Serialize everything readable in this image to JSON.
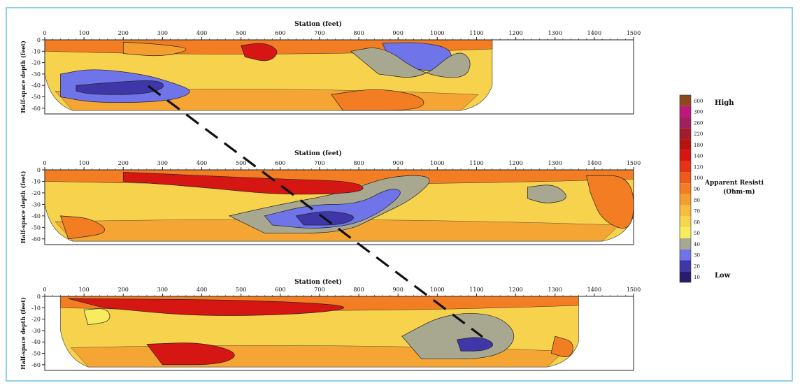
{
  "chart_data": {
    "type": "heatmap",
    "panels": [
      {
        "title": "Station (feet)",
        "ylabel": "Half-space depth (feet)",
        "xlim": [
          0,
          1500
        ],
        "ylim": [
          -65,
          0
        ],
        "x_ticks": [
          "0",
          "100",
          "200",
          "300",
          "400",
          "500",
          "600",
          "700",
          "800",
          "900",
          "1000",
          "1100",
          "1200",
          "1300",
          "1400",
          "1500"
        ],
        "y_ticks": [
          "0",
          "-10",
          "-20",
          "-30",
          "-40",
          "-50",
          "-60"
        ],
        "data_extent_x": [
          0,
          1140
        ],
        "regions": [
          {
            "level": "30-40",
            "points": [
              [
                40,
                -30
              ],
              [
                120,
                -25
              ],
              [
                250,
                -30
              ],
              [
                330,
                -38
              ],
              [
                380,
                -45
              ],
              [
                340,
                -52
              ],
              [
                250,
                -55
              ],
              [
                120,
                -55
              ],
              [
                40,
                -50
              ]
            ]
          },
          {
            "level": "20-30",
            "points": [
              [
                80,
                -40
              ],
              [
                180,
                -37
              ],
              [
                290,
                -35
              ],
              [
                310,
                -42
              ],
              [
                250,
                -48
              ],
              [
                120,
                -48
              ],
              [
                80,
                -45
              ]
            ]
          },
          {
            "level": "30-40",
            "points": [
              [
                860,
                -3
              ],
              [
                960,
                -2
              ],
              [
                1040,
                -8
              ],
              [
                1030,
                -25
              ],
              [
                960,
                -28
              ],
              [
                880,
                -18
              ]
            ]
          },
          {
            "level": "40-50",
            "points": [
              [
                780,
                -10
              ],
              [
                860,
                -5
              ],
              [
                960,
                -30
              ],
              [
                1070,
                -35
              ],
              [
                1090,
                -18
              ],
              [
                1050,
                -8
              ],
              [
                960,
                -35
              ],
              [
                850,
                -30
              ]
            ]
          },
          {
            "level": "100-150",
            "points": [
              [
                500,
                -5
              ],
              [
                560,
                -2
              ],
              [
                600,
                -10
              ],
              [
                570,
                -20
              ],
              [
                510,
                -15
              ]
            ]
          },
          {
            "level": "80-90",
            "points": [
              [
                200,
                -2
              ],
              [
                300,
                -4
              ],
              [
                380,
                -8
              ],
              [
                300,
                -15
              ],
              [
                200,
                -12
              ]
            ]
          },
          {
            "level": "90-100",
            "points": [
              [
                730,
                -48
              ],
              [
                850,
                -42
              ],
              [
                970,
                -50
              ],
              [
                960,
                -62
              ],
              [
                760,
                -62
              ]
            ]
          }
        ]
      },
      {
        "title": "Station (feet)",
        "ylabel": "Half-space depth (feet)",
        "xlim": [
          0,
          1500
        ],
        "ylim": [
          -65,
          0
        ],
        "x_ticks": [
          "0",
          "100",
          "200",
          "300",
          "400",
          "500",
          "600",
          "700",
          "800",
          "900",
          "1000",
          "1100",
          "1200",
          "1300",
          "1400",
          "1500"
        ],
        "y_ticks": [
          "0",
          "-10",
          "-20",
          "-30",
          "-40",
          "-50",
          "-60"
        ],
        "data_extent_x": [
          0,
          1500
        ],
        "regions": [
          {
            "level": "40-50",
            "points": [
              [
                470,
                -40
              ],
              [
                600,
                -30
              ],
              [
                760,
                -20
              ],
              [
                880,
                -5
              ],
              [
                1000,
                -5
              ],
              [
                940,
                -25
              ],
              [
                850,
                -40
              ],
              [
                760,
                -55
              ],
              [
                560,
                -55
              ]
            ]
          },
          {
            "level": "30-40",
            "points": [
              [
                560,
                -40
              ],
              [
                680,
                -30
              ],
              [
                800,
                -30
              ],
              [
                880,
                -15
              ],
              [
                920,
                -20
              ],
              [
                820,
                -45
              ],
              [
                700,
                -52
              ],
              [
                580,
                -48
              ]
            ]
          },
          {
            "level": "20-30",
            "points": [
              [
                640,
                -40
              ],
              [
                720,
                -35
              ],
              [
                800,
                -40
              ],
              [
                760,
                -48
              ],
              [
                660,
                -48
              ]
            ]
          },
          {
            "level": "100-150",
            "points": [
              [
                200,
                -2
              ],
              [
                400,
                -5
              ],
              [
                600,
                -8
              ],
              [
                800,
                -10
              ],
              [
                820,
                -20
              ],
              [
                600,
                -22
              ],
              [
                400,
                -15
              ],
              [
                200,
                -10
              ]
            ]
          },
          {
            "level": "90-100",
            "points": [
              [
                1380,
                -5
              ],
              [
                1500,
                -5
              ],
              [
                1500,
                -55
              ],
              [
                1420,
                -45
              ],
              [
                1390,
                -20
              ]
            ]
          },
          {
            "level": "40-50",
            "points": [
              [
                1230,
                -15
              ],
              [
                1300,
                -12
              ],
              [
                1340,
                -25
              ],
              [
                1280,
                -30
              ],
              [
                1230,
                -25
              ]
            ]
          },
          {
            "level": "90-100",
            "points": [
              [
                40,
                -40
              ],
              [
                120,
                -42
              ],
              [
                170,
                -55
              ],
              [
                60,
                -60
              ]
            ]
          }
        ]
      },
      {
        "title": "Station (feet)",
        "ylabel": "Half-space depth (feet)",
        "xlim": [
          0,
          1500
        ],
        "ylim": [
          -65,
          0
        ],
        "x_ticks": [
          "0",
          "100",
          "200",
          "300",
          "400",
          "500",
          "600",
          "700",
          "800",
          "900",
          "1000",
          "1100",
          "1200",
          "1300",
          "1400",
          "1500"
        ],
        "y_ticks": [
          "0",
          "-10",
          "-20",
          "-30",
          "-40",
          "-50",
          "-60"
        ],
        "data_extent_x": [
          40,
          1360
        ],
        "regions": [
          {
            "level": "100-150",
            "points": [
              [
                60,
                -2
              ],
              [
                500,
                -3
              ],
              [
                800,
                -8
              ],
              [
                700,
                -15
              ],
              [
                400,
                -18
              ],
              [
                150,
                -10
              ]
            ]
          },
          {
            "level": "40-50",
            "points": [
              [
                910,
                -35
              ],
              [
                1020,
                -15
              ],
              [
                1150,
                -15
              ],
              [
                1210,
                -35
              ],
              [
                1150,
                -55
              ],
              [
                960,
                -55
              ]
            ]
          },
          {
            "level": "20-30",
            "points": [
              [
                1050,
                -38
              ],
              [
                1110,
                -35
              ],
              [
                1150,
                -42
              ],
              [
                1120,
                -48
              ],
              [
                1060,
                -48
              ]
            ]
          },
          {
            "level": "100-150",
            "points": [
              [
                260,
                -42
              ],
              [
                400,
                -40
              ],
              [
                500,
                -50
              ],
              [
                450,
                -60
              ],
              [
                300,
                -60
              ]
            ]
          },
          {
            "level": "90-100",
            "points": [
              [
                1300,
                -35
              ],
              [
                1350,
                -40
              ],
              [
                1340,
                -55
              ],
              [
                1290,
                -50
              ]
            ]
          },
          {
            "level": "50-60",
            "points": [
              [
                100,
                -12
              ],
              [
                160,
                -10
              ],
              [
                170,
                -22
              ],
              [
                110,
                -25
              ]
            ]
          }
        ]
      }
    ],
    "colorbar": {
      "ticks": [
        "600",
        "300",
        "260",
        "220",
        "180",
        "140",
        "120",
        "100",
        "90",
        "80",
        "70",
        "60",
        "50",
        "40",
        "30",
        "20",
        "10"
      ],
      "colors": [
        "#8b4a1e",
        "#c0177a",
        "#a12060",
        "#a11d2b",
        "#b8140f",
        "#d61612",
        "#e53315",
        "#ef5a1b",
        "#f37d22",
        "#f59e30",
        "#f7bd3d",
        "#f6d74c",
        "#f7ec5e",
        "#a8a890",
        "#6f74e9",
        "#3f36a8",
        "#2a1a6b"
      ],
      "label_top": "High",
      "label_bottom": "Low",
      "label_title": "Apparent Resisti",
      "label_units": "(Ohm-m)"
    },
    "trend_line": {
      "label": ""
    }
  }
}
